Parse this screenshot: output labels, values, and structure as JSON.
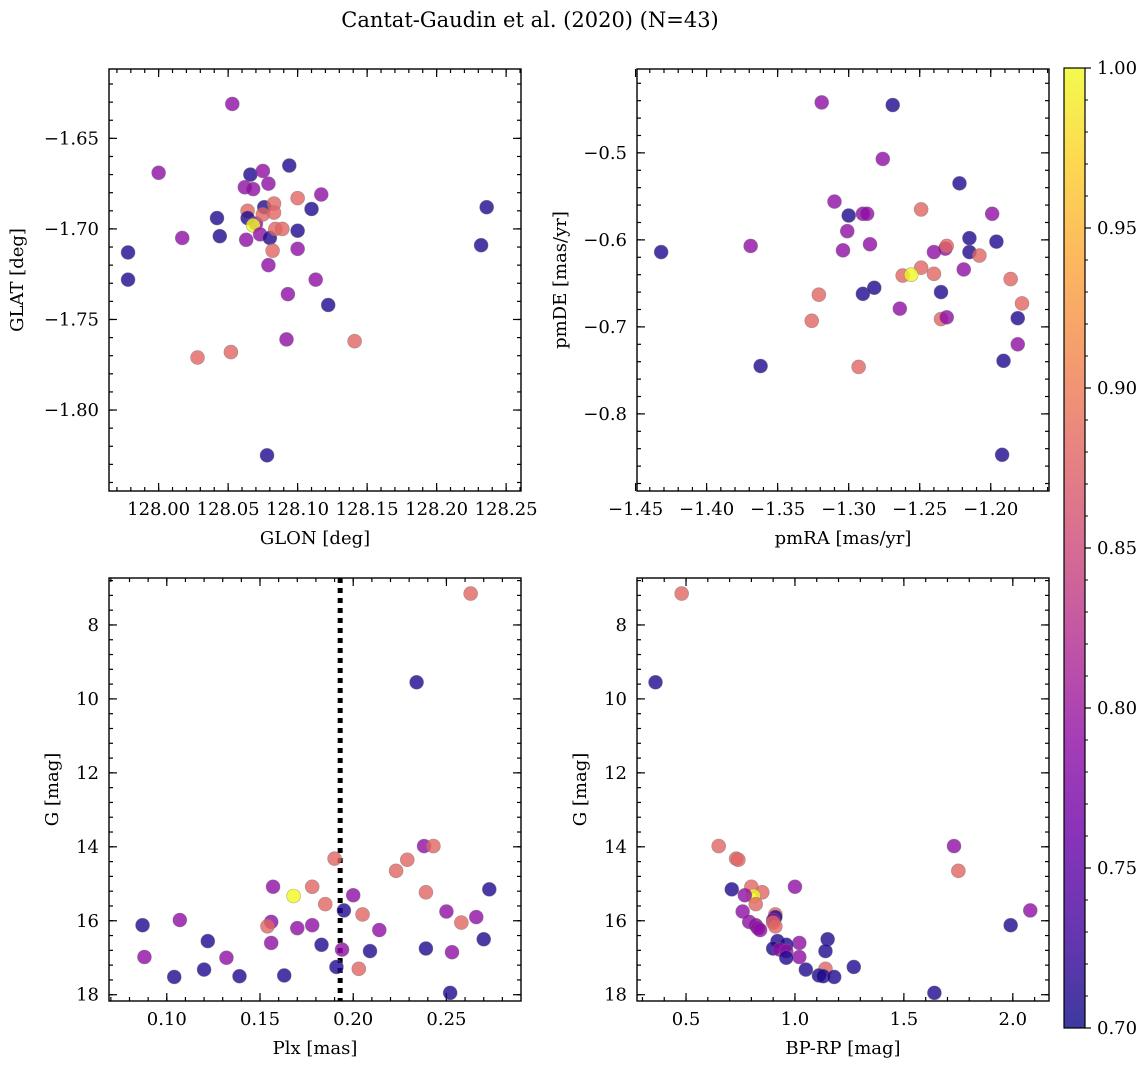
{
  "figure_title": "Cantat-Gaudin et al. (2020) (N=43)",
  "colorbar": {
    "range": [
      0.7,
      1.0
    ],
    "ticks": [
      0.7,
      0.75,
      0.8,
      0.85,
      0.9,
      0.95,
      1.0
    ],
    "tick_labels": [
      "0.70",
      "0.75",
      "0.80",
      "0.85",
      "0.90",
      "0.95",
      "1.00"
    ],
    "colormap": "plasma",
    "colormap_stops": [
      "#0d0887",
      "#41049d",
      "#6a00a8",
      "#8f0da4",
      "#b12a90",
      "#cc4778",
      "#e16462",
      "#f2844b",
      "#fca636",
      "#fcce25",
      "#f0f921"
    ]
  },
  "marker": {
    "alpha": 0.8,
    "edge_color": "#777777"
  },
  "chart_data": [
    {
      "id": "lb",
      "type": "scatter",
      "xlabel": "GLON [deg]",
      "ylabel": "GLAT [deg]",
      "xlim": [
        127.9643,
        128.2607
      ],
      "ylim": [
        -1.8447,
        -1.6117
      ],
      "xticks": [
        128.0,
        128.05,
        128.1,
        128.15,
        128.2,
        128.25
      ],
      "xtick_labels": [
        "128.00",
        "128.05",
        "128.10",
        "128.15",
        "128.20",
        "128.25"
      ],
      "yticks": [
        -1.8,
        -1.75,
        -1.7,
        -1.65
      ],
      "ytick_labels": [
        "−1.80",
        "−1.75",
        "−1.70",
        "−1.65"
      ],
      "points": [
        {
          "x": 128.053,
          "y": -1.631,
          "c": 0.79
        },
        {
          "x": 128.0,
          "y": -1.669,
          "c": 0.79
        },
        {
          "x": 128.017,
          "y": -1.705,
          "c": 0.79
        },
        {
          "x": 127.978,
          "y": -1.713,
          "c": 0.71
        },
        {
          "x": 127.978,
          "y": -1.728,
          "c": 0.71
        },
        {
          "x": 128.042,
          "y": -1.694,
          "c": 0.71
        },
        {
          "x": 128.044,
          "y": -1.704,
          "c": 0.71
        },
        {
          "x": 128.066,
          "y": -1.67,
          "c": 0.71
        },
        {
          "x": 128.094,
          "y": -1.665,
          "c": 0.71
        },
        {
          "x": 128.062,
          "y": -1.677,
          "c": 0.79
        },
        {
          "x": 128.068,
          "y": -1.678,
          "c": 0.79
        },
        {
          "x": 128.075,
          "y": -1.668,
          "c": 0.79
        },
        {
          "x": 128.079,
          "y": -1.675,
          "c": 0.79
        },
        {
          "x": 128.076,
          "y": -1.688,
          "c": 0.71
        },
        {
          "x": 128.064,
          "y": -1.69,
          "c": 0.88
        },
        {
          "x": 128.064,
          "y": -1.694,
          "c": 0.71
        },
        {
          "x": 128.07,
          "y": -1.697,
          "c": 0.79
        },
        {
          "x": 128.068,
          "y": -1.698,
          "c": 1.0
        },
        {
          "x": 128.075,
          "y": -1.692,
          "c": 0.88
        },
        {
          "x": 128.083,
          "y": -1.686,
          "c": 0.88
        },
        {
          "x": 128.083,
          "y": -1.691,
          "c": 0.88
        },
        {
          "x": 128.063,
          "y": -1.706,
          "c": 0.79
        },
        {
          "x": 128.073,
          "y": -1.703,
          "c": 0.79
        },
        {
          "x": 128.08,
          "y": -1.705,
          "c": 0.71
        },
        {
          "x": 128.084,
          "y": -1.7,
          "c": 0.88
        },
        {
          "x": 128.089,
          "y": -1.7,
          "c": 0.88
        },
        {
          "x": 128.082,
          "y": -1.712,
          "c": 0.88
        },
        {
          "x": 128.079,
          "y": -1.72,
          "c": 0.79
        },
        {
          "x": 128.1,
          "y": -1.683,
          "c": 0.88
        },
        {
          "x": 128.117,
          "y": -1.681,
          "c": 0.79
        },
        {
          "x": 128.11,
          "y": -1.689,
          "c": 0.71
        },
        {
          "x": 128.1,
          "y": -1.701,
          "c": 0.71
        },
        {
          "x": 128.1,
          "y": -1.711,
          "c": 0.79
        },
        {
          "x": 128.093,
          "y": -1.736,
          "c": 0.79
        },
        {
          "x": 128.113,
          "y": -1.728,
          "c": 0.79
        },
        {
          "x": 128.122,
          "y": -1.742,
          "c": 0.71
        },
        {
          "x": 128.092,
          "y": -1.761,
          "c": 0.79
        },
        {
          "x": 128.028,
          "y": -1.771,
          "c": 0.88
        },
        {
          "x": 128.052,
          "y": -1.768,
          "c": 0.88
        },
        {
          "x": 128.141,
          "y": -1.762,
          "c": 0.88
        },
        {
          "x": 128.078,
          "y": -1.825,
          "c": 0.71
        },
        {
          "x": 128.236,
          "y": -1.688,
          "c": 0.71
        },
        {
          "x": 128.232,
          "y": -1.709,
          "c": 0.71
        }
      ]
    },
    {
      "id": "pm",
      "type": "scatter",
      "xlabel": "pmRA [mas/yr]",
      "ylabel": "pmDE [mas/yr]",
      "xlim": [
        -1.449,
        -1.159
      ],
      "ylim": [
        -0.8886,
        -0.4036
      ],
      "xticks": [
        -1.45,
        -1.4,
        -1.35,
        -1.3,
        -1.25,
        -1.2
      ],
      "xtick_labels": [
        "−1.45",
        "−1.40",
        "−1.35",
        "−1.30",
        "−1.25",
        "−1.20"
      ],
      "yticks": [
        -0.8,
        -0.7,
        -0.6,
        -0.5
      ],
      "ytick_labels": [
        "−0.8",
        "−0.7",
        "−0.6",
        "−0.5"
      ],
      "points": [
        {
          "x": -1.319,
          "y": -0.442,
          "c": 0.79
        },
        {
          "x": -1.269,
          "y": -0.445,
          "c": 0.71
        },
        {
          "x": -1.276,
          "y": -0.507,
          "c": 0.79
        },
        {
          "x": -1.222,
          "y": -0.535,
          "c": 0.71
        },
        {
          "x": -1.31,
          "y": -0.556,
          "c": 0.79
        },
        {
          "x": -1.3,
          "y": -0.572,
          "c": 0.71
        },
        {
          "x": -1.29,
          "y": -0.57,
          "c": 0.79
        },
        {
          "x": -1.287,
          "y": -0.57,
          "c": 0.79
        },
        {
          "x": -1.249,
          "y": -0.565,
          "c": 0.88
        },
        {
          "x": -1.199,
          "y": -0.57,
          "c": 0.79
        },
        {
          "x": -1.301,
          "y": -0.59,
          "c": 0.79
        },
        {
          "x": -1.215,
          "y": -0.598,
          "c": 0.71
        },
        {
          "x": -1.196,
          "y": -0.602,
          "c": 0.71
        },
        {
          "x": -1.369,
          "y": -0.607,
          "c": 0.79
        },
        {
          "x": -1.304,
          "y": -0.612,
          "c": 0.79
        },
        {
          "x": -1.285,
          "y": -0.605,
          "c": 0.79
        },
        {
          "x": -1.24,
          "y": -0.614,
          "c": 0.79
        },
        {
          "x": -1.232,
          "y": -0.61,
          "c": 0.79
        },
        {
          "x": -1.231,
          "y": -0.607,
          "c": 0.88
        },
        {
          "x": -1.215,
          "y": -0.614,
          "c": 0.71
        },
        {
          "x": -1.208,
          "y": -0.618,
          "c": 0.88
        },
        {
          "x": -1.432,
          "y": -0.614,
          "c": 0.71
        },
        {
          "x": -1.249,
          "y": -0.632,
          "c": 0.88
        },
        {
          "x": -1.24,
          "y": -0.639,
          "c": 0.88
        },
        {
          "x": -1.219,
          "y": -0.634,
          "c": 0.79
        },
        {
          "x": -1.262,
          "y": -0.641,
          "c": 0.88
        },
        {
          "x": -1.256,
          "y": -0.64,
          "c": 1.0
        },
        {
          "x": -1.186,
          "y": -0.645,
          "c": 0.88
        },
        {
          "x": -1.321,
          "y": -0.663,
          "c": 0.88
        },
        {
          "x": -1.29,
          "y": -0.662,
          "c": 0.71
        },
        {
          "x": -1.282,
          "y": -0.655,
          "c": 0.71
        },
        {
          "x": -1.235,
          "y": -0.66,
          "c": 0.71
        },
        {
          "x": -1.178,
          "y": -0.673,
          "c": 0.88
        },
        {
          "x": -1.264,
          "y": -0.679,
          "c": 0.79
        },
        {
          "x": -1.326,
          "y": -0.693,
          "c": 0.88
        },
        {
          "x": -1.235,
          "y": -0.691,
          "c": 0.88
        },
        {
          "x": -1.231,
          "y": -0.689,
          "c": 0.79
        },
        {
          "x": -1.181,
          "y": -0.69,
          "c": 0.71
        },
        {
          "x": -1.181,
          "y": -0.72,
          "c": 0.79
        },
        {
          "x": -1.191,
          "y": -0.739,
          "c": 0.71
        },
        {
          "x": -1.362,
          "y": -0.745,
          "c": 0.71
        },
        {
          "x": -1.293,
          "y": -0.746,
          "c": 0.88
        },
        {
          "x": -1.192,
          "y": -0.847,
          "c": 0.71
        }
      ]
    },
    {
      "id": "plx",
      "type": "scatter",
      "xlabel": "Plx [mas]",
      "ylabel": "G [mag]",
      "xlim": [
        0.069,
        0.29
      ],
      "ylim": [
        18.17,
        6.73
      ],
      "xticks": [
        0.1,
        0.15,
        0.2,
        0.25
      ],
      "xtick_labels": [
        "0.10",
        "0.15",
        "0.20",
        "0.25"
      ],
      "yticks": [
        8,
        10,
        12,
        14,
        16,
        18
      ],
      "ytick_labels": [
        "8",
        "10",
        "12",
        "14",
        "16",
        "18"
      ],
      "vline": {
        "x": 0.193,
        "style": "dotted"
      },
      "points": [
        {
          "x": 0.263,
          "y": 7.15,
          "c": 0.88
        },
        {
          "x": 0.234,
          "y": 9.55,
          "c": 0.71
        },
        {
          "x": 0.238,
          "y": 13.98,
          "c": 0.79
        },
        {
          "x": 0.243,
          "y": 13.98,
          "c": 0.88
        },
        {
          "x": 0.19,
          "y": 14.32,
          "c": 0.88
        },
        {
          "x": 0.229,
          "y": 14.35,
          "c": 0.88
        },
        {
          "x": 0.223,
          "y": 14.65,
          "c": 0.88
        },
        {
          "x": 0.157,
          "y": 15.08,
          "c": 0.79
        },
        {
          "x": 0.178,
          "y": 15.08,
          "c": 0.88
        },
        {
          "x": 0.273,
          "y": 15.15,
          "c": 0.71
        },
        {
          "x": 0.239,
          "y": 15.23,
          "c": 0.88
        },
        {
          "x": 0.2,
          "y": 15.31,
          "c": 0.79
        },
        {
          "x": 0.168,
          "y": 15.33,
          "c": 1.0
        },
        {
          "x": 0.185,
          "y": 15.55,
          "c": 0.88
        },
        {
          "x": 0.195,
          "y": 15.72,
          "c": 0.71
        },
        {
          "x": 0.25,
          "y": 15.75,
          "c": 0.79
        },
        {
          "x": 0.205,
          "y": 15.83,
          "c": 0.88
        },
        {
          "x": 0.266,
          "y": 15.9,
          "c": 0.79
        },
        {
          "x": 0.107,
          "y": 15.98,
          "c": 0.79
        },
        {
          "x": 0.156,
          "y": 16.03,
          "c": 0.79
        },
        {
          "x": 0.258,
          "y": 16.05,
          "c": 0.88
        },
        {
          "x": 0.087,
          "y": 16.12,
          "c": 0.71
        },
        {
          "x": 0.178,
          "y": 16.12,
          "c": 0.79
        },
        {
          "x": 0.154,
          "y": 16.15,
          "c": 0.88
        },
        {
          "x": 0.17,
          "y": 16.2,
          "c": 0.79
        },
        {
          "x": 0.214,
          "y": 16.25,
          "c": 0.79
        },
        {
          "x": 0.27,
          "y": 16.5,
          "c": 0.71
        },
        {
          "x": 0.122,
          "y": 16.55,
          "c": 0.71
        },
        {
          "x": 0.156,
          "y": 16.6,
          "c": 0.79
        },
        {
          "x": 0.183,
          "y": 16.65,
          "c": 0.71
        },
        {
          "x": 0.239,
          "y": 16.75,
          "c": 0.71
        },
        {
          "x": 0.194,
          "y": 16.78,
          "c": 0.79
        },
        {
          "x": 0.209,
          "y": 16.82,
          "c": 0.71
        },
        {
          "x": 0.253,
          "y": 16.85,
          "c": 0.79
        },
        {
          "x": 0.088,
          "y": 16.98,
          "c": 0.79
        },
        {
          "x": 0.132,
          "y": 17.0,
          "c": 0.79
        },
        {
          "x": 0.191,
          "y": 17.25,
          "c": 0.71
        },
        {
          "x": 0.203,
          "y": 17.3,
          "c": 0.88
        },
        {
          "x": 0.12,
          "y": 17.32,
          "c": 0.71
        },
        {
          "x": 0.104,
          "y": 17.52,
          "c": 0.71
        },
        {
          "x": 0.139,
          "y": 17.5,
          "c": 0.71
        },
        {
          "x": 0.163,
          "y": 17.48,
          "c": 0.71
        },
        {
          "x": 0.252,
          "y": 17.95,
          "c": 0.71
        }
      ]
    },
    {
      "id": "cmd",
      "type": "scatter",
      "xlabel": "BP-RP [mag]",
      "ylabel": "G [mag]",
      "xlim": [
        0.275,
        2.166
      ],
      "ylim": [
        18.17,
        6.73
      ],
      "xticks": [
        0.5,
        1.0,
        1.5,
        2.0
      ],
      "xtick_labels": [
        "0.5",
        "1.0",
        "1.5",
        "2.0"
      ],
      "yticks": [
        8,
        10,
        12,
        14,
        16,
        18
      ],
      "ytick_labels": [
        "8",
        "10",
        "12",
        "14",
        "16",
        "18"
      ],
      "points": [
        {
          "x": 0.48,
          "y": 7.15,
          "c": 0.88
        },
        {
          "x": 0.36,
          "y": 9.55,
          "c": 0.71
        },
        {
          "x": 0.65,
          "y": 13.98,
          "c": 0.88
        },
        {
          "x": 1.73,
          "y": 13.98,
          "c": 0.79
        },
        {
          "x": 0.73,
          "y": 14.32,
          "c": 0.88
        },
        {
          "x": 0.74,
          "y": 14.35,
          "c": 0.88
        },
        {
          "x": 1.75,
          "y": 14.65,
          "c": 0.88
        },
        {
          "x": 0.71,
          "y": 15.15,
          "c": 0.71
        },
        {
          "x": 0.8,
          "y": 15.08,
          "c": 0.88
        },
        {
          "x": 1.0,
          "y": 15.08,
          "c": 0.79
        },
        {
          "x": 0.85,
          "y": 15.23,
          "c": 0.88
        },
        {
          "x": 0.81,
          "y": 15.33,
          "c": 1.0
        },
        {
          "x": 0.77,
          "y": 15.31,
          "c": 0.79
        },
        {
          "x": 0.82,
          "y": 15.55,
          "c": 0.88
        },
        {
          "x": 0.76,
          "y": 15.75,
          "c": 0.79
        },
        {
          "x": 2.08,
          "y": 15.72,
          "c": 0.79
        },
        {
          "x": 0.91,
          "y": 15.83,
          "c": 0.88
        },
        {
          "x": 0.91,
          "y": 15.9,
          "c": 0.71
        },
        {
          "x": 0.9,
          "y": 15.98,
          "c": 0.79
        },
        {
          "x": 0.79,
          "y": 16.03,
          "c": 0.79
        },
        {
          "x": 0.9,
          "y": 16.05,
          "c": 0.88
        },
        {
          "x": 0.82,
          "y": 16.12,
          "c": 0.79
        },
        {
          "x": 1.99,
          "y": 16.12,
          "c": 0.71
        },
        {
          "x": 0.91,
          "y": 16.15,
          "c": 0.88
        },
        {
          "x": 0.83,
          "y": 16.2,
          "c": 0.79
        },
        {
          "x": 0.84,
          "y": 16.25,
          "c": 0.79
        },
        {
          "x": 1.15,
          "y": 16.5,
          "c": 0.71
        },
        {
          "x": 0.92,
          "y": 16.55,
          "c": 0.71
        },
        {
          "x": 1.02,
          "y": 16.6,
          "c": 0.79
        },
        {
          "x": 0.96,
          "y": 16.65,
          "c": 0.71
        },
        {
          "x": 0.9,
          "y": 16.75,
          "c": 0.71
        },
        {
          "x": 0.93,
          "y": 16.78,
          "c": 0.79
        },
        {
          "x": 0.96,
          "y": 16.82,
          "c": 0.79
        },
        {
          "x": 1.14,
          "y": 16.82,
          "c": 0.71
        },
        {
          "x": 1.02,
          "y": 16.98,
          "c": 0.79
        },
        {
          "x": 0.96,
          "y": 17.0,
          "c": 0.71
        },
        {
          "x": 1.27,
          "y": 17.25,
          "c": 0.71
        },
        {
          "x": 1.14,
          "y": 17.3,
          "c": 0.88
        },
        {
          "x": 1.05,
          "y": 17.32,
          "c": 0.71
        },
        {
          "x": 1.11,
          "y": 17.48,
          "c": 0.71
        },
        {
          "x": 1.13,
          "y": 17.5,
          "c": 0.71
        },
        {
          "x": 1.18,
          "y": 17.52,
          "c": 0.71
        },
        {
          "x": 1.64,
          "y": 17.95,
          "c": 0.71
        }
      ]
    }
  ]
}
